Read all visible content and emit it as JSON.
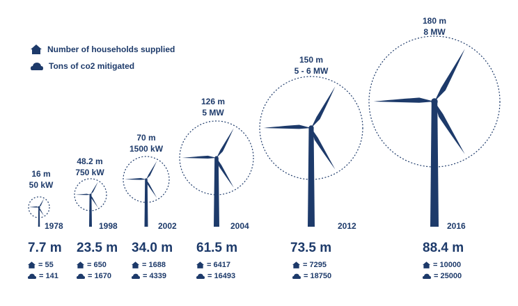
{
  "legend": {
    "households": {
      "label": "Number of households supplied",
      "icon": "house-icon"
    },
    "co2": {
      "label": "Tons of co2 mitigated",
      "icon": "cloud-icon"
    }
  },
  "colors": {
    "navy": "#1d3a6a"
  },
  "turbines": [
    {
      "diameter": "16 m",
      "power": "50 kW",
      "year": "1978",
      "hub_height": "7.7 m",
      "households": "= 55",
      "co2": "= 141"
    },
    {
      "diameter": "48.2 m",
      "power": "750 kW",
      "year": "1998",
      "hub_height": "23.5 m",
      "households": "= 650",
      "co2": "= 1670"
    },
    {
      "diameter": "70 m",
      "power": "1500 kW",
      "year": "2002",
      "hub_height": "34.0 m",
      "households": "= 1688",
      "co2": "= 4339"
    },
    {
      "diameter": "126 m",
      "power": "5 MW",
      "year": "2004",
      "hub_height": "61.5 m",
      "households": "= 6417",
      "co2": "= 16493"
    },
    {
      "diameter": "150 m",
      "power": "5 - 6 MW",
      "year": "2012",
      "hub_height": "73.5 m",
      "households": "= 7295",
      "co2": "= 18750"
    },
    {
      "diameter": "180 m",
      "power": "8 MW",
      "year": "2016",
      "hub_height": "88.4 m",
      "households": "= 10000",
      "co2": "= 25000"
    }
  ]
}
